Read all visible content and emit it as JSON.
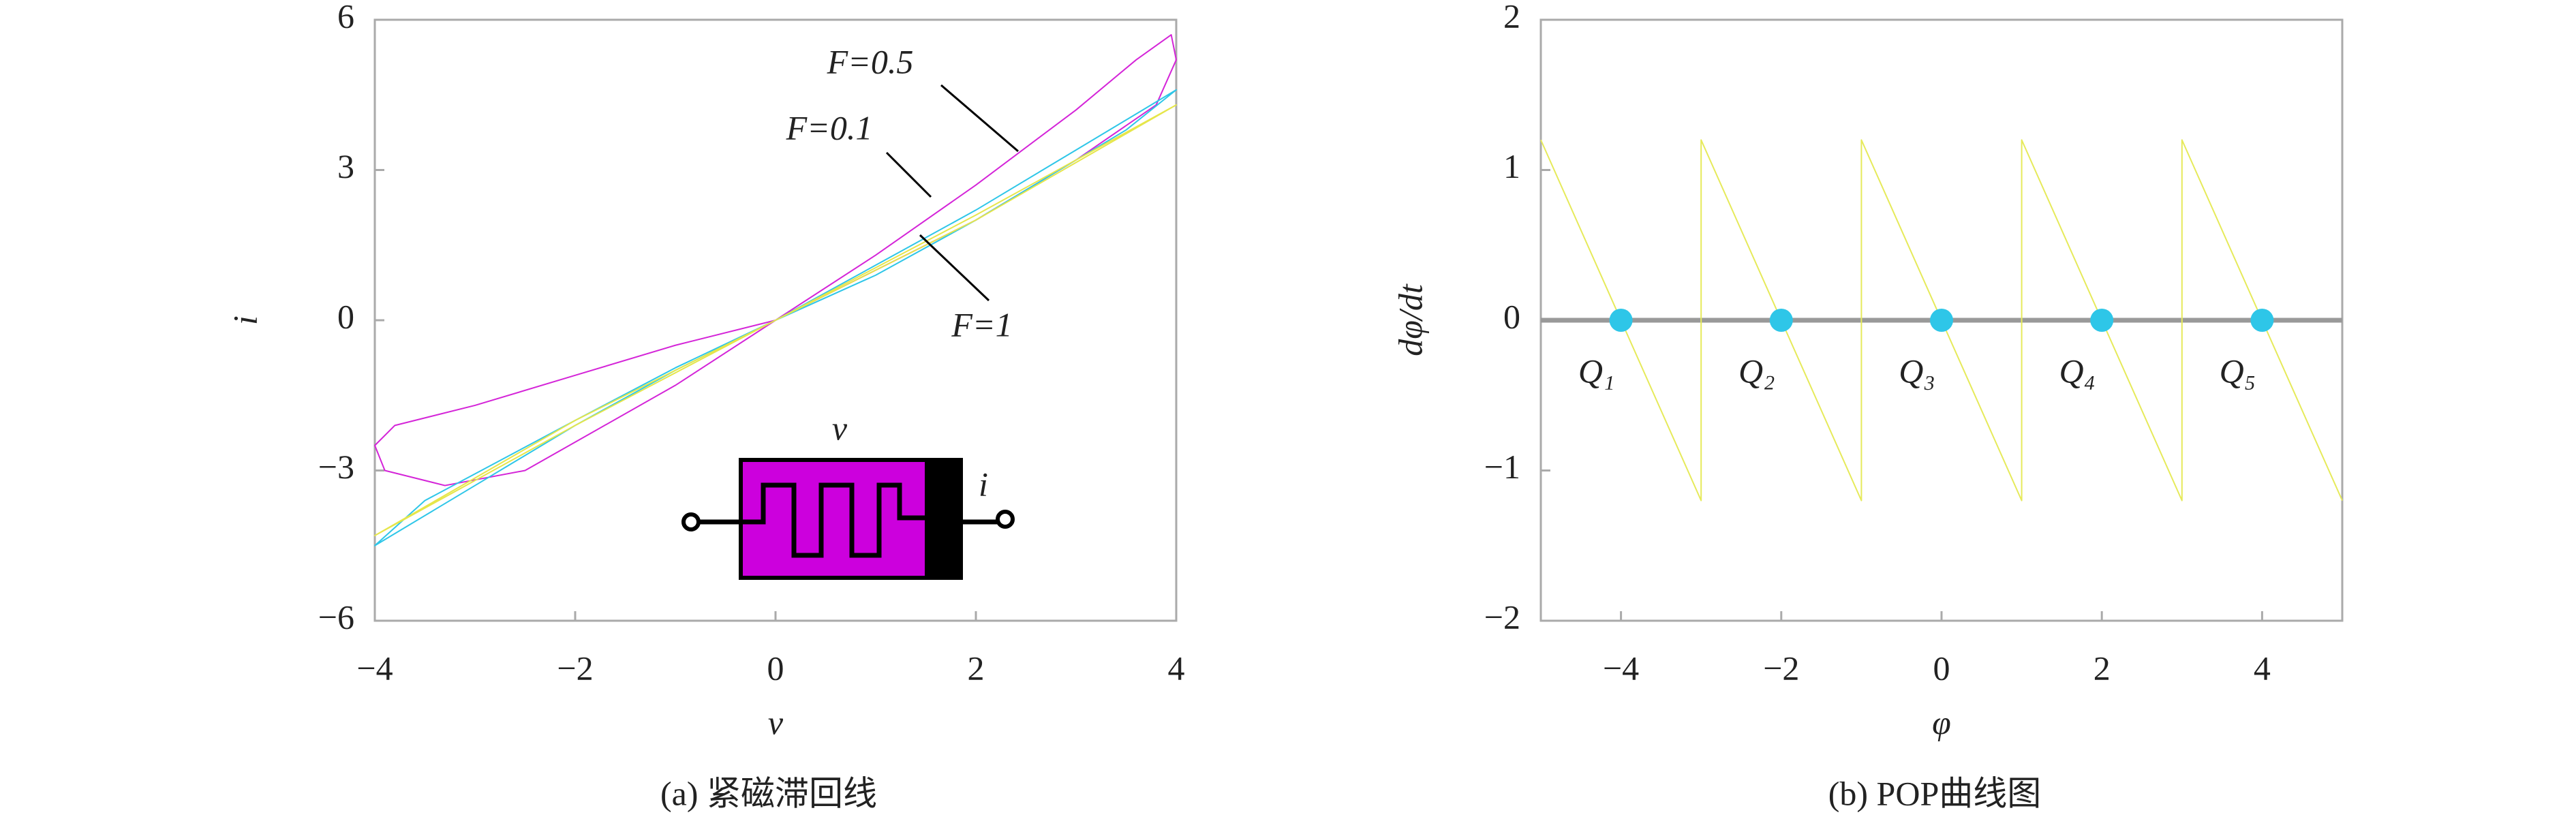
{
  "chart_data": [
    {
      "type": "line",
      "caption": "(a) 紧磁滞回线",
      "xlabel": "v",
      "ylabel": "i",
      "xlim": [
        -4,
        4
      ],
      "ylim": [
        -6,
        6
      ],
      "xticks": [
        {
          "value": -4,
          "label": "−4"
        },
        {
          "value": -2,
          "label": "−2"
        },
        0,
        2,
        4
      ],
      "yticks": [
        {
          "value": -6,
          "label": "−6"
        },
        {
          "value": -3,
          "label": "−3"
        },
        0,
        3,
        6
      ],
      "series": [
        {
          "color": "#d424d8",
          "width": 2,
          "x": [
            0,
            1,
            2,
            3,
            3.6,
            3.95,
            4,
            3.8,
            3,
            2,
            1,
            0,
            -1,
            -2,
            -3,
            -3.8,
            -4,
            -3.9,
            -3.3,
            -2.5,
            -1,
            0
          ],
          "values": [
            0,
            1.3,
            2.7,
            4.2,
            5.2,
            5.7,
            5.2,
            4.3,
            3.2,
            2.0,
            1.0,
            0,
            -0.5,
            -1.1,
            -1.7,
            -2.1,
            -2.5,
            -3.0,
            -3.3,
            -3.0,
            -1.3,
            0
          ]
        },
        {
          "color": "#2ec6e8",
          "width": 2,
          "x": [
            0,
            1,
            2,
            3,
            4,
            3.5,
            2,
            1,
            0,
            -1,
            -2,
            -3,
            -4,
            -3.5,
            -2,
            -1,
            0
          ],
          "values": [
            0,
            1.1,
            2.2,
            3.4,
            4.6,
            3.8,
            2.0,
            0.9,
            0,
            -1.0,
            -2.1,
            -3.3,
            -4.5,
            -3.6,
            -2.0,
            -0.95,
            0
          ]
        },
        {
          "color": "#e6e64a",
          "width": 2,
          "x": [
            0,
            2,
            4,
            2,
            0,
            -2,
            -4,
            -2,
            0
          ],
          "values": [
            0,
            2.1,
            4.3,
            2.0,
            0,
            -2.1,
            -4.3,
            -2.0,
            0
          ]
        }
      ],
      "annotations": [
        "F=0.5",
        "F=0.1",
        "F=1"
      ],
      "inset_labels": [
        "v",
        "i"
      ]
    },
    {
      "type": "line",
      "caption": "(b) POP曲线图",
      "xlabel": "φ",
      "ylabel": "dφ/dt",
      "xlim": [
        -5,
        5
      ],
      "ylim": [
        -2,
        2
      ],
      "xticks": [
        {
          "value": -4,
          "label": "−4"
        },
        {
          "value": -2,
          "label": "−2"
        },
        0,
        2,
        4
      ],
      "yticks": [
        {
          "value": -2,
          "label": "−2"
        },
        {
          "value": -1,
          "label": "−1"
        },
        0,
        1,
        2
      ],
      "series": [
        {
          "color": "#999999",
          "width": 7,
          "x": [
            -5,
            5
          ],
          "values": [
            0,
            0
          ]
        },
        {
          "color": "#e6ea5a",
          "width": 2,
          "x": [
            -5,
            -3,
            -3,
            -1,
            -1,
            1,
            1,
            3,
            3,
            5
          ],
          "values": [
            1.2,
            -1.2,
            1.2,
            -1.2,
            1.2,
            -1.2,
            1.2,
            -1.2,
            1.2,
            -1.2
          ]
        }
      ],
      "markers": {
        "color": "#2ec6e8",
        "x": [
          -4,
          -2,
          0,
          2,
          4
        ],
        "values": [
          0,
          0,
          0,
          0,
          0
        ],
        "labels": [
          "Q₁",
          "Q₂",
          "Q₃",
          "Q₄",
          "Q₅"
        ]
      }
    }
  ]
}
